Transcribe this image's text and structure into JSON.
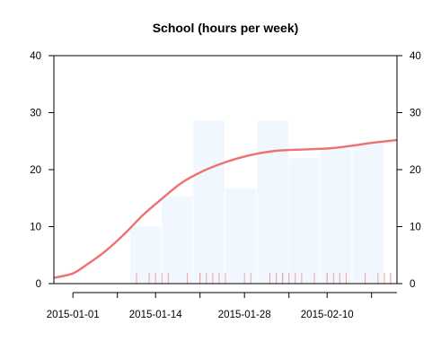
{
  "chart_data": {
    "type": "bar",
    "title": "School (hours per week)",
    "xlabel": "",
    "ylabel": "",
    "ylim": [
      0,
      40
    ],
    "xlim": [
      "2014-12-29",
      "2015-02-21"
    ],
    "y_ticks": [
      0,
      10,
      20,
      30,
      40
    ],
    "x_ticks": [
      {
        "date": "2015-01-01",
        "label": "2015-01-01"
      },
      {
        "date": "2015-01-08",
        "label": ""
      },
      {
        "date": "2015-01-14",
        "label": "2015-01-14"
      },
      {
        "date": "2015-01-21",
        "label": ""
      },
      {
        "date": "2015-01-28",
        "label": "2015-01-28"
      },
      {
        "date": "2015-02-04",
        "label": ""
      },
      {
        "date": "2015-02-10",
        "label": "2015-02-10"
      },
      {
        "date": "2015-02-17",
        "label": ""
      }
    ],
    "grid": false,
    "bars": [
      {
        "start": "2015-01-10",
        "end": "2015-01-15",
        "value": 10
      },
      {
        "start": "2015-01-15",
        "end": "2015-01-20",
        "value": 15.3
      },
      {
        "start": "2015-01-20",
        "end": "2015-01-25",
        "value": 28.6
      },
      {
        "start": "2015-01-25",
        "end": "2015-01-30",
        "value": 16.6
      },
      {
        "start": "2015-01-30",
        "end": "2015-02-04",
        "value": 28.6
      },
      {
        "start": "2015-02-04",
        "end": "2015-02-09",
        "value": 22
      },
      {
        "start": "2015-02-09",
        "end": "2015-02-14",
        "value": 23.8
      },
      {
        "start": "2015-02-14",
        "end": "2015-02-19",
        "value": 24.8
      }
    ],
    "smooth_line": {
      "x": [
        "2014-12-29",
        "2015-01-01",
        "2015-01-03",
        "2015-01-06",
        "2015-01-09",
        "2015-01-12",
        "2015-01-15",
        "2015-01-18",
        "2015-01-21",
        "2015-01-24",
        "2015-01-27",
        "2015-01-30",
        "2015-02-02",
        "2015-02-05",
        "2015-02-08",
        "2015-02-11",
        "2015-02-14",
        "2015-02-17",
        "2015-02-21"
      ],
      "y": [
        1,
        1.8,
        3.2,
        5.6,
        8.6,
        12,
        14.9,
        17.6,
        19.5,
        20.9,
        22,
        22.8,
        23.3,
        23.5,
        23.6,
        23.8,
        24.2,
        24.7,
        25.2
      ]
    },
    "rug": [
      "2015-01-11",
      "2015-01-13",
      "2015-01-14",
      "2015-01-15",
      "2015-01-16",
      "2015-01-19",
      "2015-01-21",
      "2015-01-21",
      "2015-01-22",
      "2015-01-23",
      "2015-01-24",
      "2015-01-25",
      "2015-01-28",
      "2015-01-29",
      "2015-02-01",
      "2015-02-02",
      "2015-02-02",
      "2015-02-03",
      "2015-02-03",
      "2015-02-04",
      "2015-02-05",
      "2015-02-06",
      "2015-02-08",
      "2015-02-10",
      "2015-02-10",
      "2015-02-11",
      "2015-02-12",
      "2015-02-13",
      "2015-02-16",
      "2015-02-18",
      "2015-02-19",
      "2015-02-20",
      "2015-02-20",
      "2015-02-21"
    ],
    "colors": {
      "bar_fill": "#f0f7ff",
      "line": "#ee7070",
      "rug": "#f5a0a0",
      "axis": "#000000"
    }
  }
}
